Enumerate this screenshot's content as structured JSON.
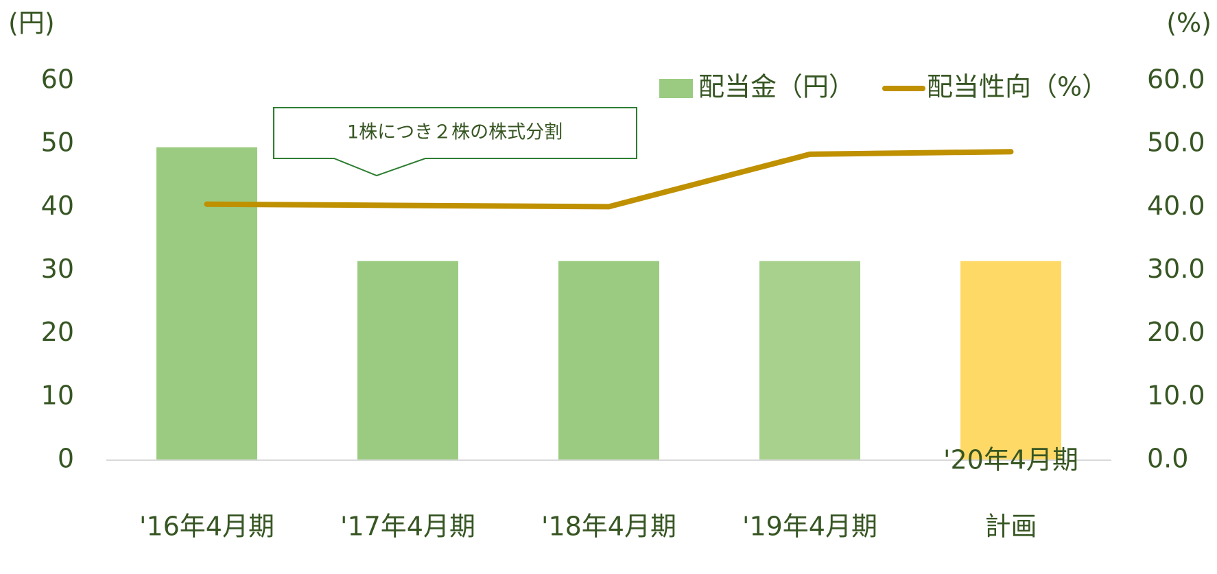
{
  "chart_data": {
    "type": "bar_line",
    "y_unit": "(円)",
    "y2_unit": "(%)",
    "annotation": "1株につき２株の株式分割",
    "categories": [
      [
        "'16年4月期"
      ],
      [
        "'17年4月期"
      ],
      [
        "'18年4月期"
      ],
      [
        "'19年4月期"
      ],
      [
        "'20年4月期",
        "計画"
      ]
    ],
    "series": [
      {
        "name": "配当金（円）",
        "type": "bar",
        "color": "#9BCB80",
        "colors": [
          "#9BCB80",
          "#9BCB80",
          "#9BCB80",
          "#A9D18E",
          "#FFD966"
        ],
        "values": [
          49.5,
          31.5,
          31.5,
          31.5,
          31.5
        ]
      },
      {
        "name": "配当性向（%）",
        "type": "line",
        "axis": "y2",
        "color": "#BF9000",
        "values": [
          40.5,
          40.3,
          40.1,
          48.4,
          48.8
        ]
      }
    ],
    "ylim": [
      0,
      60
    ],
    "yticks": [
      0,
      10,
      20,
      30,
      40,
      50,
      60
    ],
    "y2lim": [
      0,
      60
    ],
    "y2ticks": [
      {
        "value": 0,
        "label": "0.0"
      },
      {
        "value": 10,
        "label": "10.0"
      },
      {
        "value": 20,
        "label": "20.0"
      },
      {
        "value": 30,
        "label": "30.0"
      },
      {
        "value": 40,
        "label": "40.0"
      },
      {
        "value": 50,
        "label": "50.0"
      },
      {
        "value": 60,
        "label": "60.0"
      }
    ],
    "legend": "top-right"
  }
}
